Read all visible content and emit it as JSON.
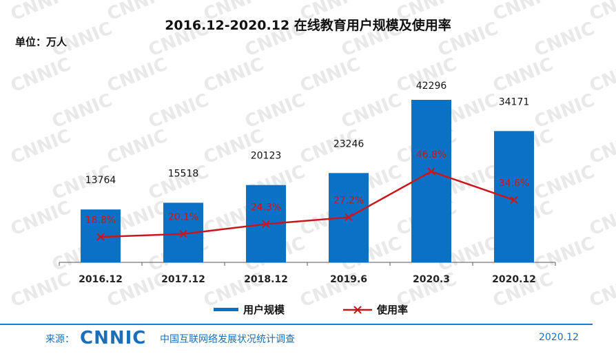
{
  "title": "2016.12-2020.12 在线教育用户规模及使用率",
  "unit": "单位：万人",
  "watermark_text": "CNNIC",
  "colors": {
    "bar": "#0a72c6",
    "line": "#c9161d",
    "axis": "#555555",
    "watermark": "#e9e9e9",
    "brand": "#1a6fb8"
  },
  "chart_data": {
    "type": "bar",
    "categories": [
      "2016.12",
      "2017.12",
      "2018.12",
      "2019.6",
      "2020.3",
      "2020.12"
    ],
    "series": [
      {
        "name": "用户规模",
        "type": "bar",
        "axis": "left",
        "values": [
          13764,
          15518,
          20123,
          23246,
          42296,
          34171
        ],
        "labels": [
          "13764",
          "15518",
          "20123",
          "23246",
          "42296",
          "34171"
        ]
      },
      {
        "name": "使用率",
        "type": "line",
        "axis": "right",
        "values": [
          18.8,
          20.1,
          24.3,
          27.2,
          46.8,
          34.6
        ],
        "labels": [
          "18.8%",
          "20.1%",
          "24.3%",
          "27.2%",
          "46.8%",
          "34.6%"
        ]
      }
    ],
    "ylim": [
      0,
      50000
    ],
    "y2lim": [
      0,
      100
    ],
    "grid": false,
    "legend": "bottom"
  },
  "footer": {
    "source_label": "来源：",
    "logo_text": "CNNIC",
    "org": "中国互联网络发展状况统计调查",
    "date": "2020.12"
  }
}
